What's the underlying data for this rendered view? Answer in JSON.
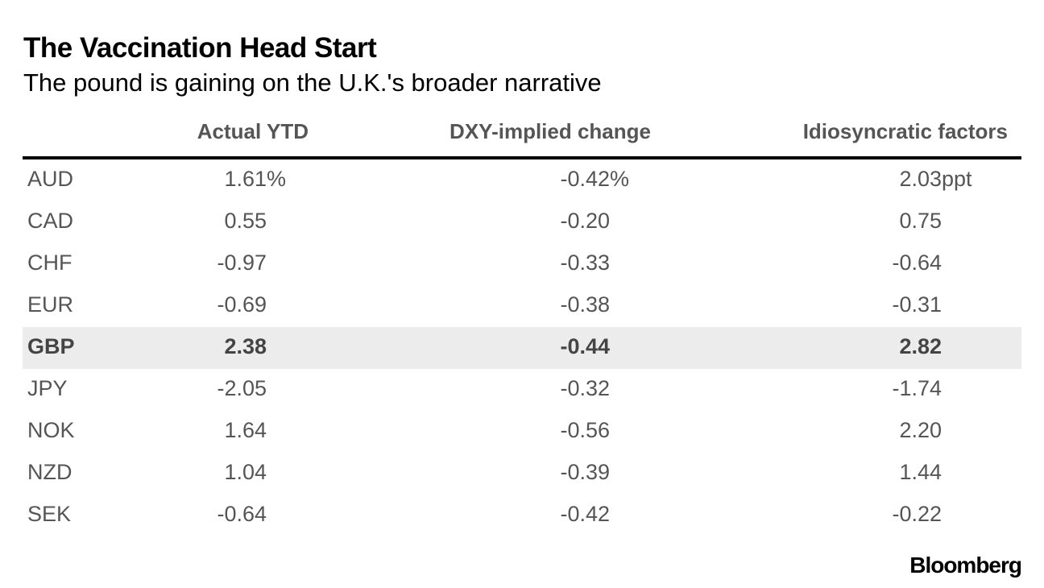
{
  "title": "The Vaccination Head Start",
  "subtitle": "The pound is gaining on the U.K.'s broader narrative",
  "chart_data": {
    "type": "table",
    "columns": [
      "",
      "Actual YTD",
      "DXY-implied change",
      "Idiosyncratic factors"
    ],
    "column_units": [
      "",
      "%",
      "%",
      "ppt"
    ],
    "highlight_row": "GBP",
    "rows": [
      {
        "currency": "AUD",
        "actual_ytd": "1.61",
        "dxy_implied": "-0.42",
        "idiosyncratic": "2.03"
      },
      {
        "currency": "CAD",
        "actual_ytd": "0.55",
        "dxy_implied": "-0.20",
        "idiosyncratic": "0.75"
      },
      {
        "currency": "CHF",
        "actual_ytd": "-0.97",
        "dxy_implied": "-0.33",
        "idiosyncratic": "-0.64"
      },
      {
        "currency": "EUR",
        "actual_ytd": "-0.69",
        "dxy_implied": "-0.38",
        "idiosyncratic": "-0.31"
      },
      {
        "currency": "GBP",
        "actual_ytd": "2.38",
        "dxy_implied": "-0.44",
        "idiosyncratic": "2.82"
      },
      {
        "currency": "JPY",
        "actual_ytd": "-2.05",
        "dxy_implied": "-0.32",
        "idiosyncratic": "-1.74"
      },
      {
        "currency": "NOK",
        "actual_ytd": "1.64",
        "dxy_implied": "-0.56",
        "idiosyncratic": "2.20"
      },
      {
        "currency": "NZD",
        "actual_ytd": "1.04",
        "dxy_implied": "-0.39",
        "idiosyncratic": "1.44"
      },
      {
        "currency": "SEK",
        "actual_ytd": "-0.64",
        "dxy_implied": "-0.42",
        "idiosyncratic": "-0.22"
      }
    ]
  },
  "source_logo": "Bloomberg"
}
